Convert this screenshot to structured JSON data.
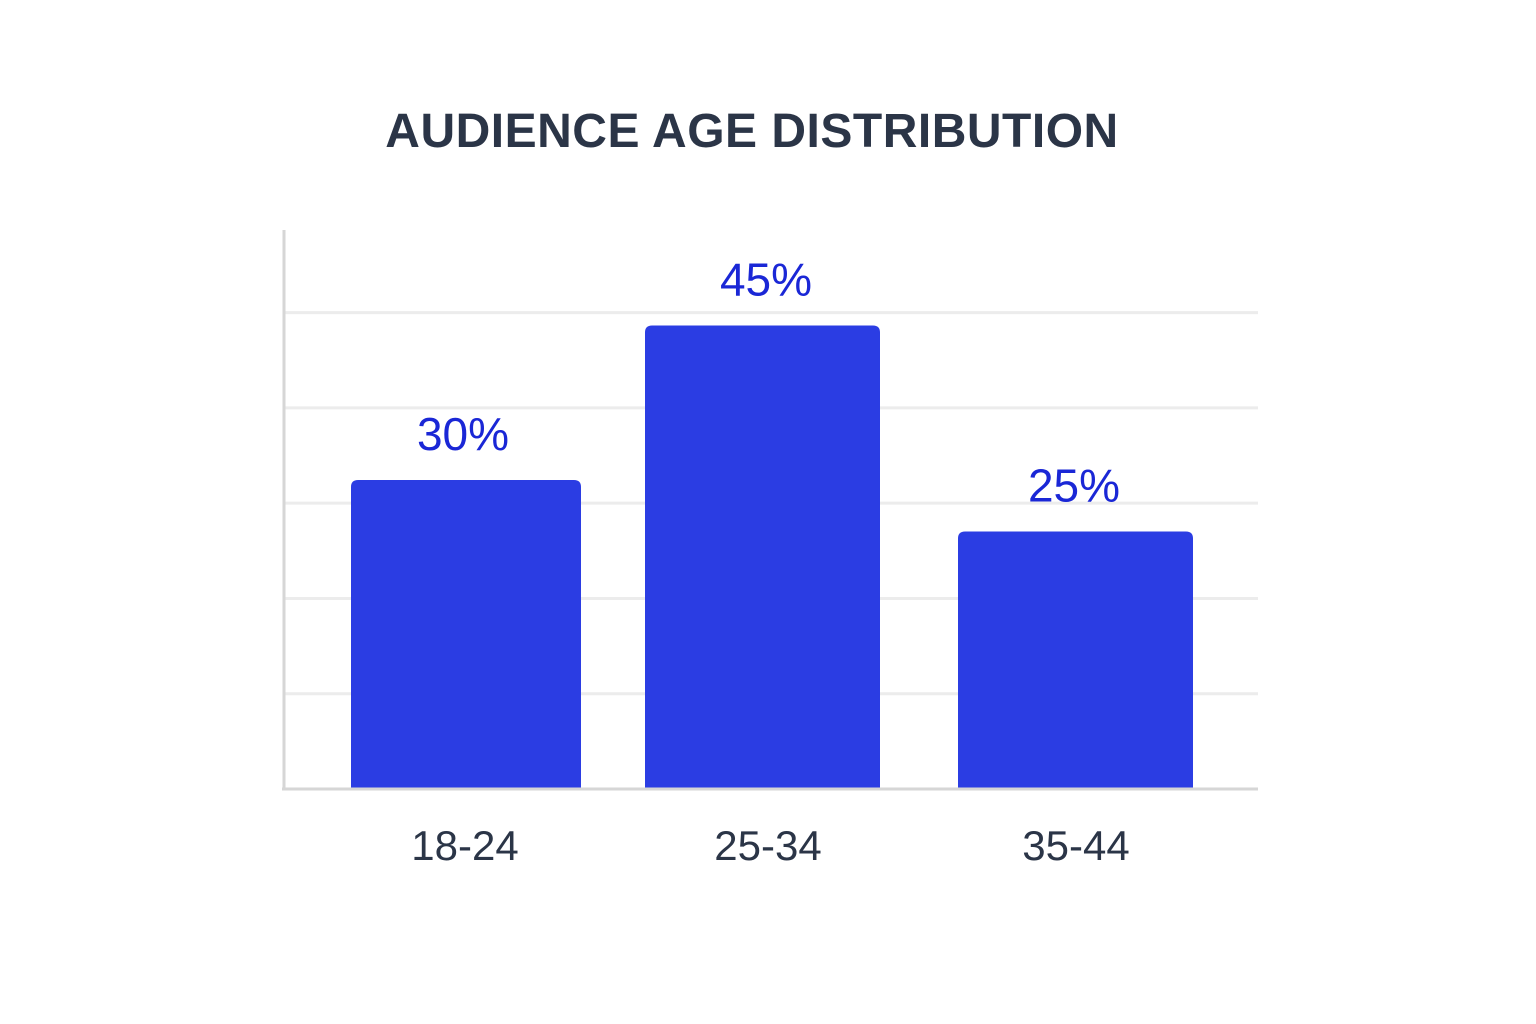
{
  "chart_data": {
    "type": "bar",
    "title": "AUDIENCE AGE DISTRIBUTION",
    "categories": [
      "18-24",
      "25-34",
      "35-44"
    ],
    "values": [
      30,
      45,
      25
    ],
    "value_labels": [
      "30%",
      "45%",
      "25%"
    ],
    "xlabel": "",
    "ylabel": "",
    "grid": true,
    "legend": "none"
  },
  "colors": {
    "bar": "#2b3de3",
    "value_label": "#1a27d6",
    "category_label": "#2b3547",
    "title": "#2b3547",
    "grid": "#ececec",
    "axis": "#d6d6d6"
  }
}
